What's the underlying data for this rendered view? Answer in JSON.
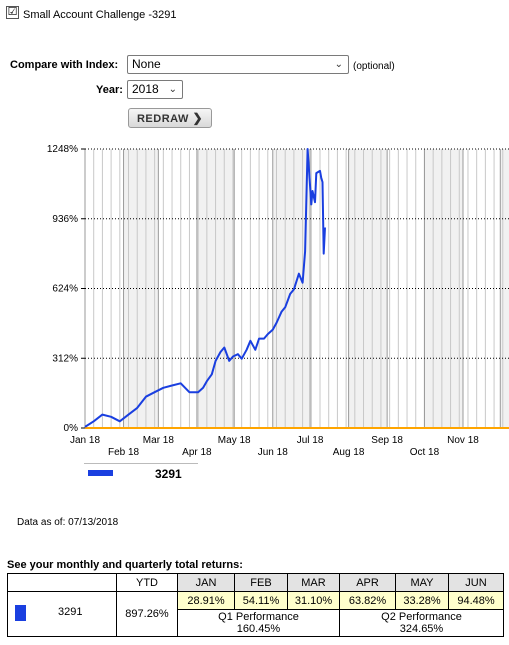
{
  "account": {
    "checkbox_checked": true,
    "checkbox_mark": "☑",
    "label": "Small Account Challenge -3291"
  },
  "compare": {
    "label": "Compare with Index:",
    "selected": "None",
    "optional": "(optional)"
  },
  "year": {
    "label": "Year:",
    "selected": "2018"
  },
  "redraw_label": "REDRAW",
  "chart_data": {
    "type": "line",
    "title": "",
    "xlabel": "",
    "ylabel": "",
    "ylim": [
      0,
      1248
    ],
    "y_ticks": [
      "0%",
      "312%",
      "624%",
      "936%",
      "1248%"
    ],
    "y_tick_values": [
      0,
      312,
      624,
      936,
      1248
    ],
    "x_ticks_row1": [
      "Jan 18",
      "Mar 18",
      "May 18",
      "Jul 18",
      "Sep 18",
      "Nov 18",
      "D"
    ],
    "x_ticks_row2": [
      "Feb 18",
      "Apr 18",
      "Jun 18",
      "Aug 18",
      "Oct 18"
    ],
    "grid": true,
    "baseline_color": "#ffa500",
    "series": [
      {
        "name": "3291",
        "color": "#1a3fe0",
        "x": [
          "2018-01-01",
          "2018-01-08",
          "2018-01-15",
          "2018-01-22",
          "2018-01-29",
          "2018-02-05",
          "2018-02-12",
          "2018-02-19",
          "2018-02-26",
          "2018-03-05",
          "2018-03-12",
          "2018-03-19",
          "2018-03-26",
          "2018-04-02",
          "2018-04-06",
          "2018-04-09",
          "2018-04-13",
          "2018-04-16",
          "2018-04-20",
          "2018-04-23",
          "2018-04-27",
          "2018-04-30",
          "2018-05-04",
          "2018-05-07",
          "2018-05-11",
          "2018-05-14",
          "2018-05-18",
          "2018-05-21",
          "2018-05-25",
          "2018-05-28",
          "2018-06-01",
          "2018-06-04",
          "2018-06-08",
          "2018-06-11",
          "2018-06-15",
          "2018-06-18",
          "2018-06-22",
          "2018-06-25",
          "2018-06-27",
          "2018-06-29",
          "2018-07-02",
          "2018-07-03",
          "2018-07-05",
          "2018-07-06",
          "2018-07-09",
          "2018-07-10",
          "2018-07-11",
          "2018-07-12",
          "2018-07-13"
        ],
        "values": [
          5,
          30,
          60,
          50,
          30,
          60,
          90,
          140,
          160,
          180,
          190,
          200,
          160,
          160,
          180,
          210,
          240,
          300,
          340,
          360,
          300,
          320,
          330,
          310,
          350,
          390,
          350,
          400,
          400,
          420,
          440,
          470,
          520,
          540,
          600,
          620,
          690,
          650,
          790,
          1248,
          1000,
          1060,
          1010,
          1140,
          1150,
          1120,
          1100,
          780,
          897
        ]
      }
    ]
  },
  "legend": {
    "series_name": "3291"
  },
  "data_as_of": "Data as of: 07/13/2018",
  "returns": {
    "heading": "See your monthly and quarterly total returns:",
    "ytd_header": "YTD",
    "months": [
      "JAN",
      "FEB",
      "MAR",
      "APR",
      "MAY",
      "JUN"
    ],
    "monthly_values": [
      "28.91%",
      "54.11%",
      "31.10%",
      "63.82%",
      "33.28%",
      "94.48%"
    ],
    "row": {
      "name": "3291",
      "ytd": "897.26%"
    },
    "quarters": [
      {
        "label": "Q1 Performance",
        "value": "160.45%"
      },
      {
        "label": "Q2 Performance",
        "value": "324.65%"
      }
    ]
  }
}
